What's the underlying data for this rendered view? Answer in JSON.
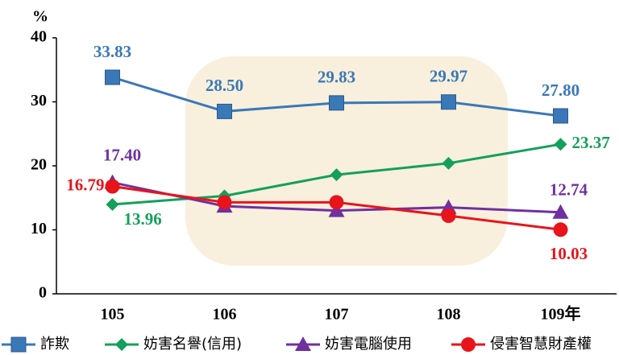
{
  "chart_data": {
    "type": "line",
    "y_label": "%",
    "categories": [
      "105",
      "106",
      "107",
      "108",
      "109年"
    ],
    "ylim": [
      0,
      40
    ],
    "yticks": [
      0,
      10,
      20,
      30,
      40
    ],
    "series": [
      {
        "name": "詐欺",
        "color": "#3a78b8",
        "marker": "square",
        "values": [
          33.83,
          28.5,
          29.83,
          29.97,
          27.8
        ],
        "value_labels": [
          "33.83",
          "28.50",
          "29.83",
          "29.97",
          "27.80"
        ]
      },
      {
        "name": "妨害名譽(信用)",
        "color": "#14a05a",
        "marker": "diamond",
        "values": [
          13.96,
          15.3,
          18.6,
          20.4,
          23.37
        ],
        "value_labels": [
          "13.96",
          null,
          null,
          null,
          "23.37"
        ]
      },
      {
        "name": "妨害電腦使用",
        "color": "#7030a0",
        "marker": "triangle",
        "values": [
          17.4,
          13.7,
          13.0,
          13.5,
          12.74
        ],
        "value_labels": [
          "17.40",
          null,
          null,
          null,
          "12.74"
        ]
      },
      {
        "name": "侵害智慧財產權",
        "color": "#e8141c",
        "marker": "circle",
        "values": [
          16.79,
          14.3,
          14.3,
          12.2,
          10.03
        ],
        "value_labels": [
          "16.79",
          null,
          null,
          null,
          "10.03"
        ]
      }
    ]
  }
}
